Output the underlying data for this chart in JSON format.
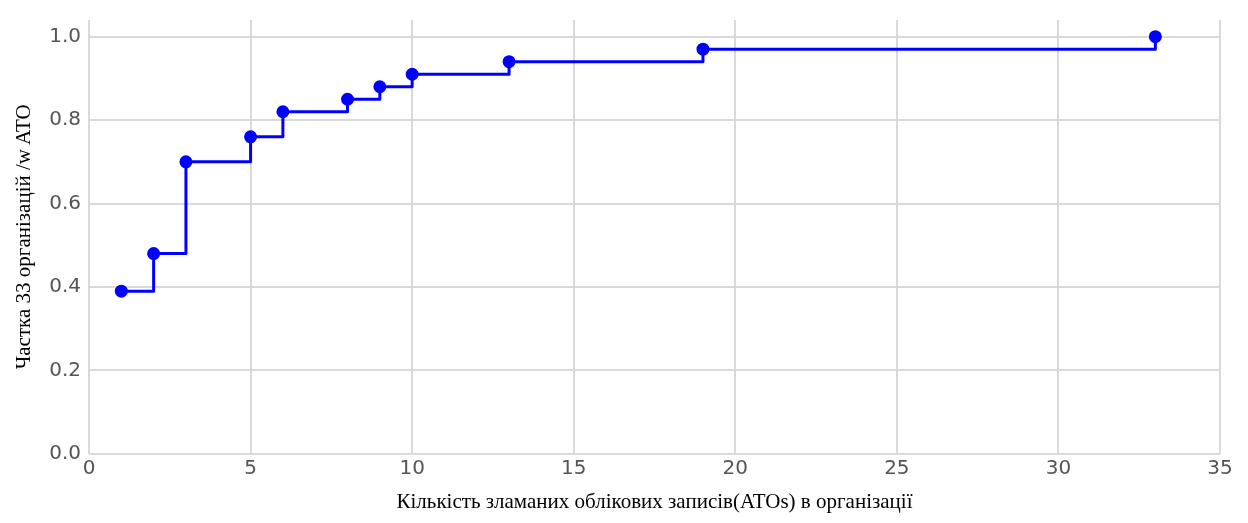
{
  "chart_data": {
    "type": "step",
    "xlabel": "Кількість зламаних облікових записів(ATOs) в організації",
    "ylabel": "Частка 33 організацій /w ATO",
    "x": [
      1,
      2,
      3,
      5,
      6,
      8,
      9,
      10,
      13,
      19,
      33
    ],
    "series": [
      {
        "color": "#0000ff",
        "values": [
          0.39,
          0.48,
          0.7,
          0.76,
          0.82,
          0.85,
          0.88,
          0.91,
          0.94,
          0.97,
          1.0
        ]
      }
    ],
    "xlim": [
      0,
      35
    ],
    "xticks": [
      0,
      5,
      10,
      15,
      20,
      25,
      30,
      35
    ],
    "ylim": [
      0,
      1.04
    ],
    "yticks": [
      {
        "value": 0,
        "label": "0.0"
      },
      {
        "value": 0.2,
        "label": "0.2"
      },
      {
        "value": 0.4,
        "label": "0.4"
      },
      {
        "value": 0.6,
        "label": "0.6"
      },
      {
        "value": 0.8,
        "label": "0.8"
      },
      {
        "value": 1,
        "label": "1.0"
      }
    ],
    "grid": true,
    "legend": false,
    "marker": "circle",
    "line_style": "solid"
  }
}
